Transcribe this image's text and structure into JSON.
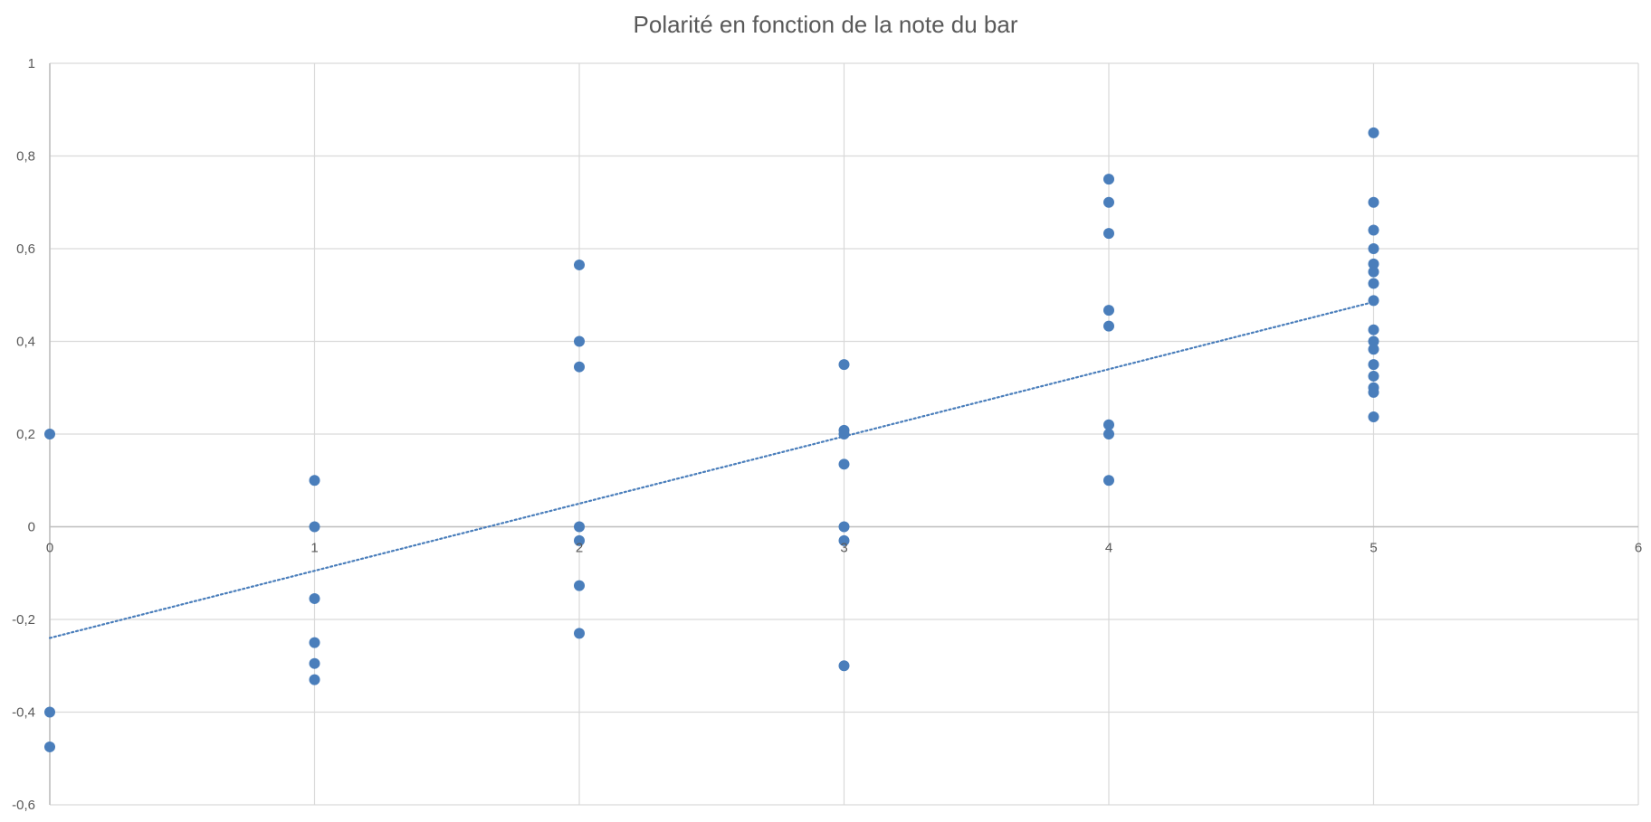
{
  "chart_data": {
    "type": "scatter",
    "title": "Polarité en fonction de la note du bar",
    "xlabel": "",
    "ylabel": "",
    "xlim": [
      0,
      6
    ],
    "ylim": [
      -0.6,
      1
    ],
    "x_ticks": [
      0,
      1,
      2,
      3,
      4,
      5,
      6
    ],
    "y_ticks": [
      -0.6,
      -0.4,
      -0.2,
      0,
      0.2,
      0.4,
      0.6,
      0.8,
      1
    ],
    "x_tick_labels": [
      "0",
      "1",
      "2",
      "3",
      "4",
      "5",
      "6"
    ],
    "y_tick_labels": [
      "-0,6",
      "-0,4",
      "-0,2",
      "0",
      "0,2",
      "0,4",
      "0,6",
      "0,8",
      "1"
    ],
    "grid": true,
    "colors": {
      "points": "#4a7ebb",
      "trendline": "#4a7ebb",
      "grid": "#d9d9d9",
      "axis": "#bfbfbf"
    },
    "series": [
      {
        "points": [
          {
            "x": 0,
            "y": 0.2
          },
          {
            "x": 0,
            "y": -0.4
          },
          {
            "x": 0,
            "y": -0.475
          },
          {
            "x": 1,
            "y": 0.1
          },
          {
            "x": 1,
            "y": 0.0
          },
          {
            "x": 1,
            "y": -0.155
          },
          {
            "x": 1,
            "y": -0.25
          },
          {
            "x": 1,
            "y": -0.295
          },
          {
            "x": 1,
            "y": -0.33
          },
          {
            "x": 2,
            "y": 0.565
          },
          {
            "x": 2,
            "y": 0.4
          },
          {
            "x": 2,
            "y": 0.345
          },
          {
            "x": 2,
            "y": 0.0
          },
          {
            "x": 2,
            "y": -0.03
          },
          {
            "x": 2,
            "y": -0.127
          },
          {
            "x": 2,
            "y": -0.23
          },
          {
            "x": 3,
            "y": 0.35
          },
          {
            "x": 3,
            "y": 0.208
          },
          {
            "x": 3,
            "y": 0.2
          },
          {
            "x": 3,
            "y": 0.135
          },
          {
            "x": 3,
            "y": 0.0
          },
          {
            "x": 3,
            "y": -0.03
          },
          {
            "x": 3,
            "y": -0.3
          },
          {
            "x": 4,
            "y": 0.75
          },
          {
            "x": 4,
            "y": 0.7
          },
          {
            "x": 4,
            "y": 0.633
          },
          {
            "x": 4,
            "y": 0.467
          },
          {
            "x": 4,
            "y": 0.433
          },
          {
            "x": 4,
            "y": 0.22
          },
          {
            "x": 4,
            "y": 0.2
          },
          {
            "x": 4,
            "y": 0.1
          },
          {
            "x": 5,
            "y": 0.85
          },
          {
            "x": 5,
            "y": 0.7
          },
          {
            "x": 5,
            "y": 0.64
          },
          {
            "x": 5,
            "y": 0.6
          },
          {
            "x": 5,
            "y": 0.567
          },
          {
            "x": 5,
            "y": 0.55
          },
          {
            "x": 5,
            "y": 0.525
          },
          {
            "x": 5,
            "y": 0.488
          },
          {
            "x": 5,
            "y": 0.425
          },
          {
            "x": 5,
            "y": 0.4
          },
          {
            "x": 5,
            "y": 0.383
          },
          {
            "x": 5,
            "y": 0.35
          },
          {
            "x": 5,
            "y": 0.325
          },
          {
            "x": 5,
            "y": 0.3
          },
          {
            "x": 5,
            "y": 0.29
          },
          {
            "x": 5,
            "y": 0.237
          }
        ]
      }
    ],
    "trendline": {
      "type": "linear",
      "style": "dotted",
      "x_range": [
        0,
        5
      ],
      "y_at_start": -0.24,
      "y_at_end": 0.485
    }
  }
}
